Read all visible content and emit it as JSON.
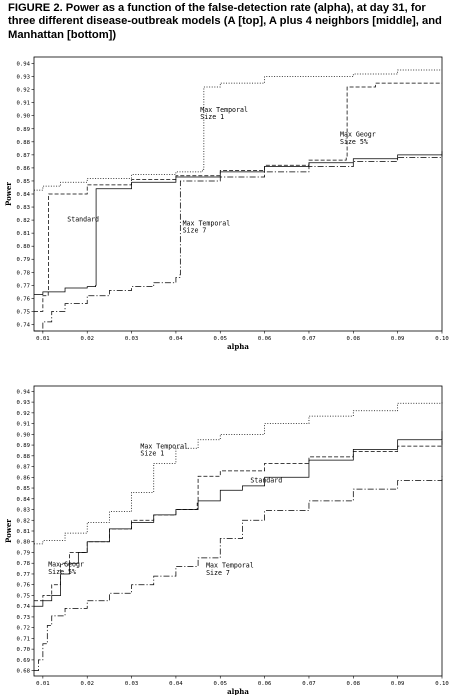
{
  "caption": "FIGURE 2. Power as a function of the false-detection rate (alpha), at day 31, for three different disease-outbreak models (A [top], A plus 4 neighbors [middle], and Manhattan [bottom])",
  "chart_data": [
    {
      "type": "line",
      "step": true,
      "title": "",
      "xlabel": "alpha",
      "ylabel": "Power",
      "xlim": [
        0.008,
        0.1
      ],
      "ylim": [
        0.735,
        0.945
      ],
      "xticks": [
        0.01,
        0.02,
        0.03,
        0.04,
        0.05,
        0.06,
        0.07,
        0.08,
        0.09,
        0.1
      ],
      "xtick_labels": [
        "0.01",
        "0.02",
        "0.03",
        "0.04",
        "0.05",
        "0.06",
        "0.07",
        "0.08",
        "0.09",
        "0.10"
      ],
      "yticks": [
        0.74,
        0.75,
        0.76,
        0.77,
        0.78,
        0.79,
        0.8,
        0.81,
        0.82,
        0.83,
        0.84,
        0.85,
        0.86,
        0.87,
        0.88,
        0.89,
        0.9,
        0.91,
        0.92,
        0.93,
        0.94
      ],
      "ytick_labels": [
        "0.74",
        "0.75",
        "0.76",
        "0.77",
        "0.78",
        "0.79",
        "0.80",
        "0.81",
        "0.82",
        "0.83",
        "0.84",
        "0.85",
        "0.86",
        "0.87",
        "0.88",
        "0.89",
        "0.90",
        "0.91",
        "0.92",
        "0.93",
        "0.94"
      ],
      "grid": false,
      "annotations": [
        {
          "lines": [
            "Max Temporal",
            "Size 1"
          ],
          "x": 0.0455,
          "y": 0.903
        },
        {
          "lines": [
            "Max Geogr",
            "Size 5%"
          ],
          "x": 0.077,
          "y": 0.884
        },
        {
          "lines": [
            "Standard"
          ],
          "x": 0.0155,
          "y": 0.819
        },
        {
          "lines": [
            "Max Temporal",
            "Size 7"
          ],
          "x": 0.0415,
          "y": 0.816
        }
      ],
      "series": [
        {
          "label": "Max Temporal Size 1",
          "style": "dotted",
          "x": [
            0.008,
            0.01,
            0.014,
            0.02,
            0.03,
            0.04,
            0.046,
            0.0463,
            0.05,
            0.06,
            0.07,
            0.08,
            0.09,
            0.1
          ],
          "y": [
            0.843,
            0.846,
            0.849,
            0.852,
            0.855,
            0.857,
            0.859,
            0.922,
            0.925,
            0.93,
            0.93,
            0.932,
            0.935,
            0.935
          ]
        },
        {
          "label": "Max Geogr Size 5%",
          "style": "dashed",
          "x": [
            0.008,
            0.01,
            0.0112,
            0.0113,
            0.02,
            0.03,
            0.04,
            0.05,
            0.06,
            0.07,
            0.0784,
            0.0786,
            0.085,
            0.09,
            0.1
          ],
          "y": [
            0.75,
            0.762,
            0.765,
            0.84,
            0.847,
            0.851,
            0.854,
            0.858,
            0.862,
            0.866,
            0.868,
            0.922,
            0.925,
            0.925,
            0.925
          ]
        },
        {
          "label": "Standard",
          "style": "solid",
          "x": [
            0.008,
            0.01,
            0.015,
            0.02,
            0.0219,
            0.022,
            0.03,
            0.04,
            0.05,
            0.06,
            0.07,
            0.08,
            0.09,
            0.1
          ],
          "y": [
            0.763,
            0.765,
            0.768,
            0.769,
            0.77,
            0.844,
            0.849,
            0.853,
            0.857,
            0.861,
            0.864,
            0.867,
            0.87,
            0.873
          ]
        },
        {
          "label": "Max Temporal Size 7",
          "style": "dashdot",
          "x": [
            0.008,
            0.01,
            0.012,
            0.015,
            0.02,
            0.025,
            0.03,
            0.035,
            0.04,
            0.0409,
            0.041,
            0.05,
            0.06,
            0.07,
            0.08,
            0.09,
            0.1
          ],
          "y": [
            0.735,
            0.742,
            0.75,
            0.756,
            0.762,
            0.766,
            0.769,
            0.772,
            0.776,
            0.778,
            0.85,
            0.853,
            0.857,
            0.861,
            0.865,
            0.868,
            0.872
          ]
        }
      ]
    },
    {
      "type": "line",
      "step": true,
      "title": "",
      "xlabel": "alpha",
      "ylabel": "Power",
      "xlim": [
        0.008,
        0.1
      ],
      "ylim": [
        0.675,
        0.945
      ],
      "xticks": [
        0.01,
        0.02,
        0.03,
        0.04,
        0.05,
        0.06,
        0.07,
        0.08,
        0.09,
        0.1
      ],
      "xtick_labels": [
        "0.01",
        "0.02",
        "0.03",
        "0.04",
        "0.05",
        "0.06",
        "0.07",
        "0.08",
        "0.09",
        "0.10"
      ],
      "yticks": [
        0.68,
        0.69,
        0.7,
        0.71,
        0.72,
        0.73,
        0.74,
        0.75,
        0.76,
        0.77,
        0.78,
        0.79,
        0.8,
        0.81,
        0.82,
        0.83,
        0.84,
        0.85,
        0.86,
        0.87,
        0.88,
        0.89,
        0.9,
        0.91,
        0.92,
        0.93,
        0.94
      ],
      "ytick_labels": [
        "0.68",
        "0.69",
        "0.70",
        "0.71",
        "0.72",
        "0.73",
        "0.74",
        "0.75",
        "0.76",
        "0.77",
        "0.78",
        "0.79",
        "0.80",
        "0.81",
        "0.82",
        "0.83",
        "0.84",
        "0.85",
        "0.86",
        "0.87",
        "0.88",
        "0.89",
        "0.90",
        "0.91",
        "0.92",
        "0.93",
        "0.94"
      ],
      "grid": false,
      "annotations": [
        {
          "lines": [
            "Max Temporal",
            "Size 1"
          ],
          "x": 0.032,
          "y": 0.887
        },
        {
          "lines": [
            "Standard"
          ],
          "x": 0.0568,
          "y": 0.855
        },
        {
          "lines": [
            "Max-Geogr",
            "Size 5%"
          ],
          "x": 0.0112,
          "y": 0.777
        },
        {
          "lines": [
            "Max Temporal",
            "Size 7"
          ],
          "x": 0.0468,
          "y": 0.776
        }
      ],
      "series": [
        {
          "label": "Max Temporal Size 1",
          "style": "dotted",
          "x": [
            0.008,
            0.01,
            0.015,
            0.02,
            0.025,
            0.03,
            0.035,
            0.04,
            0.045,
            0.05,
            0.06,
            0.07,
            0.08,
            0.09,
            0.1
          ],
          "y": [
            0.798,
            0.801,
            0.808,
            0.818,
            0.828,
            0.846,
            0.873,
            0.887,
            0.895,
            0.9,
            0.91,
            0.917,
            0.922,
            0.929,
            0.931
          ]
        },
        {
          "label": "Max-Geogr Size 5%",
          "style": "dashed",
          "x": [
            0.008,
            0.01,
            0.012,
            0.014,
            0.016,
            0.02,
            0.025,
            0.03,
            0.035,
            0.04,
            0.0448,
            0.045,
            0.05,
            0.06,
            0.07,
            0.08,
            0.09,
            0.1
          ],
          "y": [
            0.745,
            0.75,
            0.76,
            0.78,
            0.79,
            0.8,
            0.812,
            0.82,
            0.825,
            0.83,
            0.836,
            0.861,
            0.866,
            0.873,
            0.879,
            0.884,
            0.889,
            0.895
          ]
        },
        {
          "label": "Standard",
          "style": "solid",
          "x": [
            0.008,
            0.01,
            0.012,
            0.014,
            0.016,
            0.018,
            0.02,
            0.025,
            0.03,
            0.035,
            0.04,
            0.045,
            0.05,
            0.055,
            0.06,
            0.07,
            0.08,
            0.09,
            0.1
          ],
          "y": [
            0.74,
            0.745,
            0.75,
            0.77,
            0.78,
            0.79,
            0.8,
            0.812,
            0.818,
            0.825,
            0.83,
            0.838,
            0.848,
            0.852,
            0.86,
            0.876,
            0.886,
            0.895,
            0.903
          ]
        },
        {
          "label": "Max Temporal Size 7",
          "style": "dashdot",
          "x": [
            0.008,
            0.009,
            0.01,
            0.011,
            0.012,
            0.015,
            0.02,
            0.025,
            0.03,
            0.035,
            0.04,
            0.045,
            0.05,
            0.055,
            0.06,
            0.07,
            0.08,
            0.09,
            0.1
          ],
          "y": [
            0.68,
            0.69,
            0.705,
            0.722,
            0.731,
            0.738,
            0.745,
            0.752,
            0.76,
            0.768,
            0.777,
            0.785,
            0.803,
            0.82,
            0.829,
            0.838,
            0.849,
            0.857,
            0.863
          ]
        }
      ]
    }
  ]
}
